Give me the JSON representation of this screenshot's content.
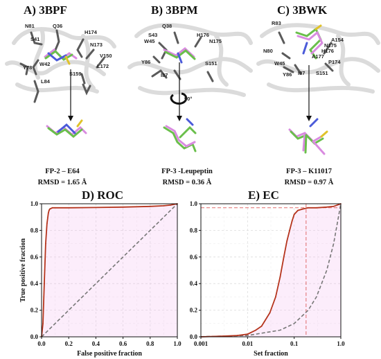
{
  "panels": [
    {
      "title": "A) 3BPF",
      "caption_line1": "FP-2 – E64",
      "caption_line2": "RMSD = 1.65 Å",
      "residues": [
        "N81",
        "Q36",
        "S41",
        "H174",
        "N173",
        "W42",
        "V150",
        "Y78",
        "L172",
        "S159",
        "L84"
      ]
    },
    {
      "title": "B) 3BPM",
      "caption_line1": "FP-3 -Leupeptin",
      "caption_line2": "RMSD = 0.36 Å",
      "residues": [
        "Q38",
        "S43",
        "H176",
        "N175",
        "W45",
        "Y86",
        "S151",
        "I87"
      ],
      "rotation_label": "90°"
    },
    {
      "title": "C) 3BWK",
      "caption_line1": "FP-3 – K11017",
      "caption_line2": "RMSD = 0.97 Å",
      "residues": [
        "R83",
        "A154",
        "N175",
        "N80",
        "H176",
        "A177",
        "P174",
        "W45",
        "Y86",
        "I87",
        "S151"
      ]
    }
  ],
  "colors": {
    "curve": "#b5341c",
    "diagonal": "#777777",
    "ref_line": "#e06a6a",
    "shade": "#f3b8ef"
  },
  "chart_data": [
    {
      "type": "line",
      "title": "D) ROC",
      "xlabel": "False positive fraction",
      "ylabel": "True positive fraction",
      "xlim": [
        0,
        1
      ],
      "ylim": [
        0,
        1
      ],
      "x_ticks": [
        "0.0",
        "0.2",
        "0.4",
        "0.6",
        "0.8",
        "1.0"
      ],
      "y_ticks": [
        "0.0",
        "0.2",
        "0.4",
        "0.6",
        "0.8",
        "1.0"
      ],
      "grid": true,
      "series": [
        {
          "x": [
            0,
            0.01,
            0.02,
            0.03,
            0.04,
            0.05,
            0.055,
            0.06,
            0.07,
            0.08,
            0.1,
            0.2,
            0.4,
            0.6,
            0.8,
            0.9,
            0.95,
            1.0
          ],
          "y": [
            0,
            0.1,
            0.4,
            0.7,
            0.85,
            0.93,
            0.95,
            0.96,
            0.965,
            0.97,
            0.97,
            0.97,
            0.972,
            0.975,
            0.98,
            0.985,
            0.99,
            1.0
          ]
        },
        {
          "x": [
            0,
            1
          ],
          "y": [
            0,
            1
          ]
        }
      ]
    },
    {
      "type": "line",
      "title": "E) EC",
      "xlabel": "Set fraction",
      "ylabel": "True positive fraction",
      "x_scale": "log",
      "xlim": [
        0.001,
        1
      ],
      "ylim": [
        0,
        1
      ],
      "x_ticks": [
        "0.001",
        "0.01",
        "0.1",
        "1.0"
      ],
      "y_ticks": [
        "0.0",
        "0.2",
        "0.4",
        "0.6",
        "0.8",
        "1.0"
      ],
      "grid": true,
      "reference_lines": {
        "y": 0.97,
        "x": 0.18
      },
      "series": [
        {
          "x": [
            0.001,
            0.003,
            0.006,
            0.01,
            0.015,
            0.02,
            0.03,
            0.04,
            0.05,
            0.06,
            0.07,
            0.08,
            0.09,
            0.1,
            0.12,
            0.15,
            0.2,
            0.3,
            0.5,
            0.7,
            1.0
          ],
          "y": [
            0,
            0.005,
            0.01,
            0.02,
            0.05,
            0.08,
            0.18,
            0.3,
            0.45,
            0.6,
            0.72,
            0.8,
            0.87,
            0.92,
            0.95,
            0.96,
            0.97,
            0.97,
            0.975,
            0.98,
            1.0
          ]
        },
        {
          "x": [
            0.001,
            0.01,
            0.05,
            0.1,
            0.2,
            0.3,
            0.5,
            0.7,
            1.0
          ],
          "y": [
            0.001,
            0.01,
            0.05,
            0.1,
            0.2,
            0.3,
            0.5,
            0.7,
            1.0
          ]
        }
      ]
    }
  ]
}
